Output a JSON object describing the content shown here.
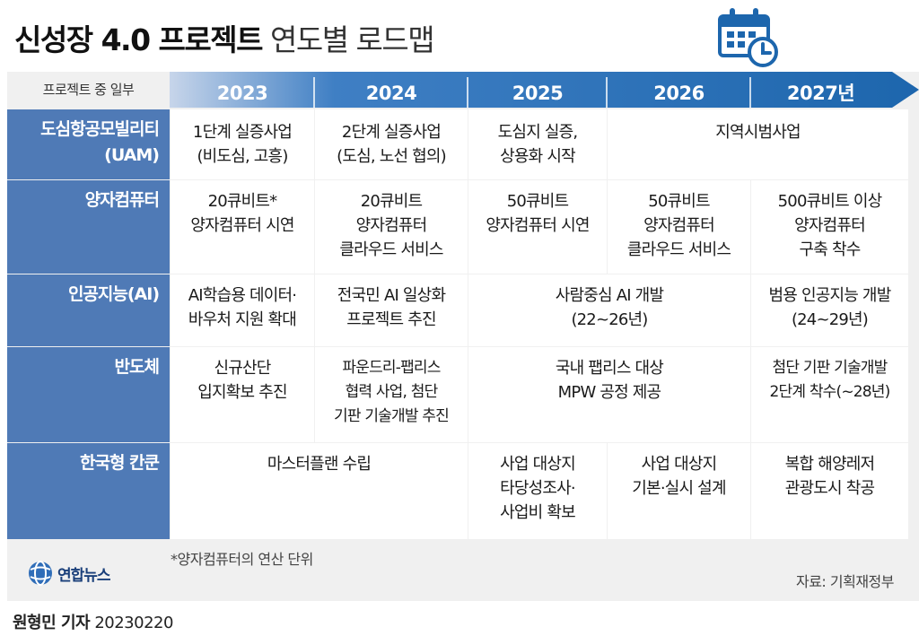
{
  "title": {
    "bold": "신성장 4.0 프로젝트",
    "light": "연도별 로드맵"
  },
  "icons": {
    "title_icon": "calendar-clock-icon",
    "logo_icon": "yonhap-globe-icon"
  },
  "colors": {
    "row_label_bg": "#4f7ab6",
    "arrow_start": "#c7d5ea",
    "arrow_end": "#1d66ad",
    "panel_bg": "#f0f0f0"
  },
  "header": {
    "label": "프로젝트 중 일부",
    "years": [
      "2023",
      "2024",
      "2025",
      "2026",
      "2027년"
    ]
  },
  "rows": [
    {
      "label": [
        "도심항공모빌리티",
        "(UAM)"
      ],
      "cells": [
        {
          "lines": [
            "1단계 실증사업",
            "(비도심, 고흥)"
          ]
        },
        {
          "lines": [
            "2단계 실증사업",
            "(도심, 노선 협의)"
          ]
        },
        {
          "lines": [
            "도심지 실증,",
            "상용화 시작"
          ]
        },
        {
          "lines": [
            "지역시범사업"
          ]
        }
      ]
    },
    {
      "label": [
        "양자컴퓨터"
      ],
      "cells": [
        {
          "lines": [
            "20큐비트*",
            "양자컴퓨터 시연"
          ]
        },
        {
          "lines": [
            "20큐비트",
            "양자컴퓨터",
            "클라우드 서비스"
          ]
        },
        {
          "lines": [
            "50큐비트",
            "양자컴퓨터 시연"
          ]
        },
        {
          "lines": [
            "50큐비트",
            "양자컴퓨터",
            "클라우드 서비스"
          ]
        },
        {
          "lines": [
            "500큐비트 이상",
            "양자컴퓨터",
            "구축 착수"
          ]
        }
      ]
    },
    {
      "label": [
        "인공지능(AI)"
      ],
      "cells": [
        {
          "lines": [
            "AI학습용 데이터·",
            "바우처 지원 확대"
          ]
        },
        {
          "lines": [
            "전국민 AI 일상화",
            "프로젝트 추진"
          ]
        },
        {
          "lines": [
            "사람중심 AI 개발",
            "(22~26년)"
          ]
        },
        {
          "lines": [
            "범용 인공지능 개발",
            "(24~29년)"
          ]
        }
      ]
    },
    {
      "label": [
        "반도체"
      ],
      "cells": [
        {
          "lines": [
            "신규산단",
            "입지확보 추진"
          ]
        },
        {
          "lines": [
            "파운드리-팹리스",
            "협력 사업, 첨단",
            "기판 기술개발 추진"
          ]
        },
        {
          "lines": [
            "국내 팹리스 대상",
            "MPW 공정 제공"
          ]
        },
        {
          "lines": [
            "첨단 기판 기술개발",
            "2단계 착수(~28년)"
          ]
        }
      ]
    },
    {
      "label": [
        "한국형 칸쿤"
      ],
      "cells": [
        {
          "lines": [
            "마스터플랜 수립"
          ]
        },
        {
          "lines": [
            "사업 대상지",
            "타당성조사·",
            "사업비 확보"
          ]
        },
        {
          "lines": [
            "사업 대상지",
            "기본·실시 설계"
          ]
        },
        {
          "lines": [
            "복합 해양레저",
            "관광도시 착공"
          ]
        }
      ]
    }
  ],
  "footnote": "*양자컴퓨터의 연산 단위",
  "source": "자료: 기획재정부",
  "logo_text": "연합뉴스",
  "byline": {
    "name": "원형민 기자",
    "date": "20230220"
  }
}
